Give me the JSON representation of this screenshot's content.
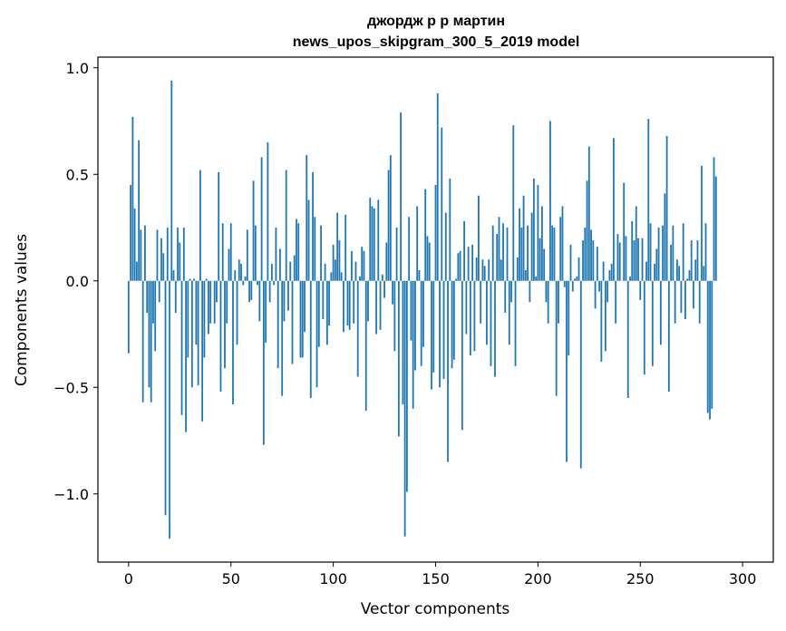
{
  "chart_data": {
    "type": "bar",
    "title": "джордж р р мартин",
    "subtitle": "news_upos_skipgram_300_5_2019 model",
    "xlabel": "Vector components",
    "ylabel": "Components values",
    "xlim": [
      -15,
      315
    ],
    "ylim": [
      -1.32,
      1.05
    ],
    "x_ticks": [
      0,
      50,
      100,
      150,
      200,
      250,
      300
    ],
    "x_tick_labels": [
      "0",
      "50",
      "100",
      "150",
      "200",
      "250",
      "300"
    ],
    "y_ticks": [
      1.0,
      0.5,
      0.0,
      -0.5,
      -1.0
    ],
    "y_tick_labels": [
      "1.0",
      "0.5",
      "0.0",
      "−0.5",
      "−1.0"
    ],
    "grid": false,
    "bar_color": "#1f77b4",
    "values": [
      -0.34,
      0.45,
      0.77,
      0.34,
      0.09,
      0.66,
      0.24,
      -0.57,
      0.26,
      -0.15,
      -0.5,
      -0.57,
      -0.2,
      -0.33,
      0.24,
      -0.1,
      0.2,
      0.13,
      -1.1,
      0.25,
      -1.21,
      0.94,
      0.05,
      -0.15,
      0.25,
      0.18,
      -0.63,
      0.25,
      -0.71,
      -0.36,
      0.01,
      -0.5,
      0.01,
      -0.3,
      -0.49,
      0.52,
      -0.66,
      -0.36,
      0.01,
      -0.25,
      -0.2,
      0.0,
      -0.2,
      -0.1,
      0.51,
      -0.52,
      0.27,
      -0.41,
      -0.2,
      0.15,
      0.27,
      -0.58,
      0.05,
      -0.3,
      0.1,
      0.08,
      -0.02,
      0.02,
      0.24,
      -0.1,
      -0.09,
      0.47,
      0.26,
      -0.02,
      -0.19,
      0.58,
      -0.77,
      -0.29,
      0.65,
      -0.1,
      0.08,
      -0.02,
      0.25,
      -0.41,
      0.15,
      -0.54,
      -0.19,
      0.52,
      -0.14,
      0.09,
      -0.39,
      0.12,
      0.29,
      0.27,
      -0.36,
      -0.36,
      -0.24,
      0.59,
      0.38,
      -0.55,
      0.51,
      0.3,
      -0.5,
      -0.31,
      0.26,
      -0.18,
      0.08,
      -0.3,
      -0.21,
      0.04,
      0.17,
      0.1,
      0.32,
      0.19,
      0.04,
      -0.24,
      0.31,
      -0.21,
      -0.23,
      0.14,
      -0.2,
      0.09,
      -0.45,
      0.02,
      0.16,
      0.14,
      -0.61,
      -0.19,
      0.39,
      0.35,
      0.34,
      -0.25,
      0.38,
      -0.23,
      0.03,
      -0.08,
      0.18,
      0.52,
      0.59,
      -0.11,
      -0.33,
      0.25,
      -0.73,
      0.79,
      -0.58,
      -1.2,
      -0.99,
      0.3,
      -0.28,
      -0.6,
      -0.42,
      0.35,
      0.05,
      -0.4,
      -0.31,
      0.43,
      0.21,
      0.18,
      -0.51,
      -0.43,
      0.45,
      0.88,
      -0.5,
      0.72,
      -0.46,
      0.32,
      -0.85,
      0.48,
      -0.41,
      -0.37,
      0.01,
      0.13,
      0.14,
      -0.7,
      0.28,
      -0.25,
      0.16,
      -0.35,
      0.17,
      -0.33,
      0.11,
      0.4,
      -0.2,
      0.1,
      0.07,
      -0.3,
      0.1,
      -0.4,
      0.26,
      -0.45,
      0.22,
      0.3,
      0.1,
      0.27,
      -0.15,
      0.25,
      -0.3,
      -0.1,
      0.73,
      -0.4,
      0.11,
      0.34,
      0.25,
      0.4,
      0.05,
      0.26,
      -0.1,
      0.32,
      0.48,
      0.02,
      0.45,
      0.2,
      0.35,
      0.15,
      -0.1,
      -0.2,
      0.75,
      0.26,
      0.25,
      -0.54,
      -0.2,
      0.3,
      0.35,
      -0.03,
      -0.85,
      -0.35,
      0.17,
      -0.05,
      0.01,
      0.02,
      0.11,
      -0.88,
      0.19,
      0.25,
      0.47,
      0.63,
      0.24,
      0.19,
      -0.13,
      0.16,
      -0.05,
      -0.38,
      0.09,
      -0.33,
      -0.1,
      0.05,
      0.08,
      0.67,
      -0.2,
      0.22,
      0.18,
      0.0,
      0.46,
      0.21,
      -0.55,
      0.02,
      0.28,
      0.19,
      0.35,
      0.2,
      -0.09,
      0.2,
      -0.44,
      0.09,
      0.76,
      0.27,
      -0.4,
      0.08,
      0.15,
      0.25,
      -0.3,
      0.26,
      0.41,
      0.68,
      -0.52,
      0.17,
      0.26,
      -0.2,
      0.1,
      0.07,
      -0.15,
      0.27,
      -0.18,
      0.01,
      0.05,
      0.19,
      -0.13,
      0.1,
      0.19,
      -0.2,
      0.54,
      0.07,
      0.27,
      -0.62,
      -0.65,
      -0.6,
      0.58,
      0.49
    ]
  }
}
